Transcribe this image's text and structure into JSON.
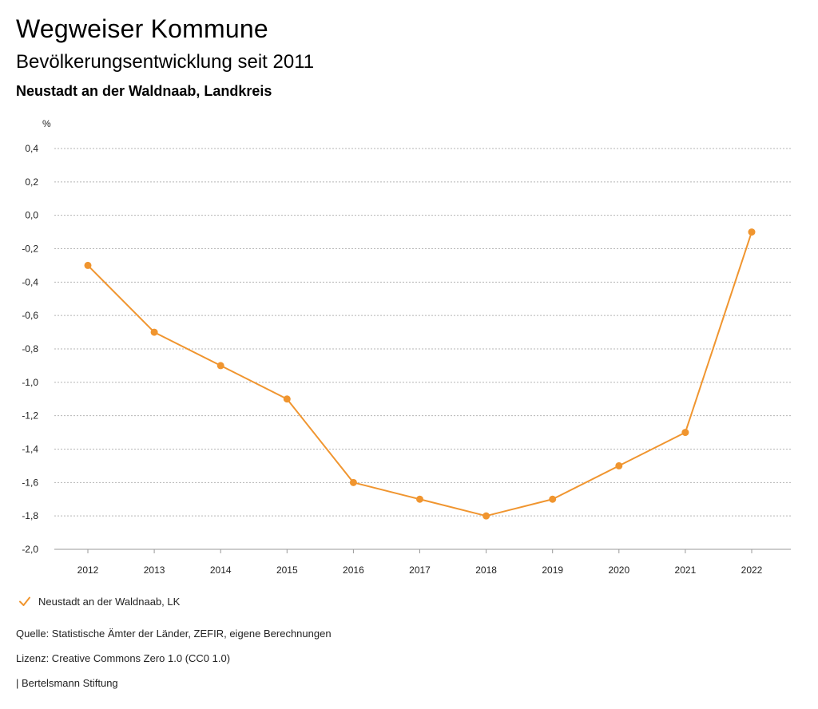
{
  "header": {
    "title": "Wegweiser Kommune",
    "subtitle": "Bevölkerungsentwicklung seit 2011",
    "region": "Neustadt an der Waldnaab, Landkreis"
  },
  "colors": {
    "series": "#f0952f",
    "grid": "#b5b5b5",
    "axis_text": "#222222"
  },
  "chart_data": {
    "type": "line",
    "title": "Bevölkerungsentwicklung seit 2011",
    "ylabel": "%",
    "xlabel": "",
    "x": [
      "2012",
      "2013",
      "2014",
      "2015",
      "2016",
      "2017",
      "2018",
      "2019",
      "2020",
      "2021",
      "2022"
    ],
    "series": [
      {
        "name": "Neustadt an der Waldnaab, LK",
        "values": [
          -0.3,
          -0.7,
          -0.9,
          -1.1,
          -1.6,
          -1.7,
          -1.8,
          -1.7,
          -1.5,
          -1.3,
          -0.1
        ]
      }
    ],
    "ylim": [
      -2.0,
      0.4
    ],
    "yticks": [
      0.4,
      0.2,
      0.0,
      -0.2,
      -0.4,
      -0.6,
      -0.8,
      -1.0,
      -1.2,
      -1.4,
      -1.6,
      -1.8,
      -2.0
    ],
    "ytick_labels": [
      "0,4",
      "0,2",
      "0,0",
      "-0,2",
      "-0,4",
      "-0,6",
      "-0,8",
      "-1,0",
      "-1,2",
      "-1,4",
      "-1,6",
      "-1,8",
      "-2,0"
    ],
    "grid": true,
    "legend_position": "bottom-left"
  },
  "legend": {
    "label": "Neustadt an der Waldnaab, LK"
  },
  "footer": {
    "source": "Quelle: Statistische Ämter der Länder, ZEFIR, eigene Berechnungen",
    "license": "Lizenz: Creative Commons Zero 1.0 (CC0 1.0)",
    "publisher": "| Bertelsmann Stiftung"
  }
}
